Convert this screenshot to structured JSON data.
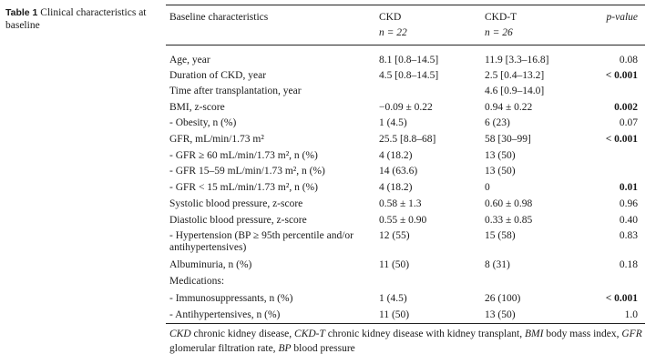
{
  "caption": {
    "label": "Table 1",
    "text": "Clinical characteristics at baseline"
  },
  "header": {
    "col0": "Baseline characteristics",
    "col1": "CKD",
    "col1_n": "n = 22",
    "col2": "CKD-T",
    "col2_n": "n = 26",
    "col3": "p-value"
  },
  "rows": [
    {
      "label": "Age, year",
      "ckd": "8.1 [0.8–14.5]",
      "ckdt": "11.9 [3.3–16.8]",
      "p": "0.08",
      "bold": false
    },
    {
      "label": "Duration of CKD, year",
      "ckd": "4.5 [0.8–14.5]",
      "ckdt": "2.5 [0.4–13.2]",
      "p": "< 0.001",
      "bold": true
    },
    {
      "label": "Time after transplantation, year",
      "ckd": "",
      "ckdt": "4.6 [0.9–14.0]",
      "p": "",
      "bold": false
    },
    {
      "label": "BMI, z-score",
      "ckd": "−0.09 ± 0.22",
      "ckdt": "0.94 ± 0.22",
      "p": "0.002",
      "bold": true
    },
    {
      "label": "- Obesity, n (%)",
      "ckd": "1 (4.5)",
      "ckdt": "6 (23)",
      "p": "0.07",
      "bold": false
    },
    {
      "label": "GFR, mL/min/1.73 m²",
      "ckd": "25.5 [8.8–68]",
      "ckdt": "58 [30–99]",
      "p": "< 0.001",
      "bold": true
    },
    {
      "label": "- GFR ≥ 60 mL/min/1.73 m², n (%)",
      "ckd": "4 (18.2)",
      "ckdt": "13 (50)",
      "p": "",
      "bold": false
    },
    {
      "label": "- GFR 15–59 mL/min/1.73 m², n (%)",
      "ckd": "14 (63.6)",
      "ckdt": "13 (50)",
      "p": "",
      "bold": false
    },
    {
      "label": "- GFR < 15 mL/min/1.73 m², n (%)",
      "ckd": "4 (18.2)",
      "ckdt": "0",
      "p": "0.01",
      "bold": true
    },
    {
      "label": "Systolic blood pressure, z-score",
      "ckd": "0.58 ± 1.3",
      "ckdt": "0.60 ± 0.98",
      "p": "0.96",
      "bold": false
    },
    {
      "label": "Diastolic blood pressure, z-score",
      "ckd": "0.55 ± 0.90",
      "ckdt": "0.33 ± 0.85",
      "p": "0.40",
      "bold": false
    },
    {
      "label": "- Hypertension (BP ≥ 95th percentile and/or antihypertensives)",
      "ckd": "12 (55)",
      "ckdt": "15 (58)",
      "p": "0.83",
      "bold": false
    },
    {
      "label": "Albuminuria, n (%)",
      "ckd": "11 (50)",
      "ckdt": "8 (31)",
      "p": "0.18",
      "bold": false
    },
    {
      "label": "Medications:",
      "ckd": "",
      "ckdt": "",
      "p": "",
      "bold": false
    },
    {
      "label": "- Immunosuppressants, n (%)",
      "ckd": "1 (4.5)",
      "ckdt": "26 (100)",
      "p": "< 0.001",
      "bold": true
    },
    {
      "label": "- Antihypertensives, n (%)",
      "ckd": "11 (50)",
      "ckdt": "13 (50)",
      "p": "1.0",
      "bold": false
    }
  ],
  "footnote": {
    "a1": "CKD",
    "t1": " chronic kidney disease, ",
    "a2": "CKD-T",
    "t2": " chronic kidney disease with kidney transplant, ",
    "a3": "BMI",
    "t3": " body mass index, ",
    "a4": "GFR",
    "t4": " glomerular filtration rate, ",
    "a5": "BP",
    "t5": " blood pressure"
  }
}
